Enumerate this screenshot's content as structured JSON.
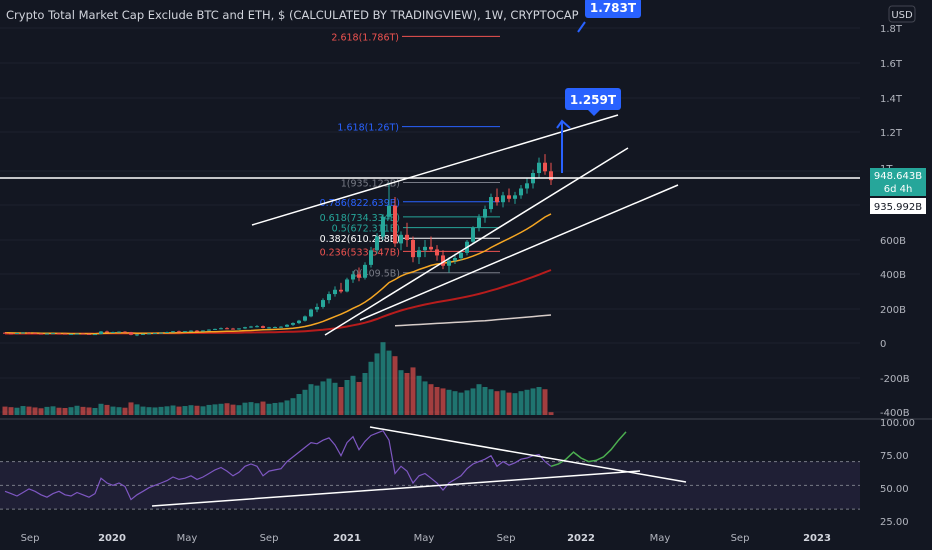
{
  "header": {
    "title": "Crypto Total Market Cap Exclude BTC and ETH, $ (CALCULATED BY TRADINGVIEW), 1W, CRYPTOCAP",
    "currency": "USD"
  },
  "colors": {
    "background": "#131722",
    "axis_text": "#b2b5be",
    "up": "#26a69a",
    "down": "#ef5350",
    "trendline": "#ffffff",
    "target": "#2962ff",
    "ma_fast": "#f5a623",
    "ma_mid": "#b71c1c",
    "ma_slow": "#d7ccc8",
    "rsi": "#7e57c2",
    "projection": "#4caf50"
  },
  "callouts": [
    {
      "label": "1.783T",
      "value": 1783
    },
    {
      "label": "1.259T",
      "value": 1259
    }
  ],
  "price_axis": {
    "tick_labels": [
      "1.8T",
      "1.6T",
      "1.4T",
      "1.2T",
      "1T",
      "600B",
      "400B",
      "200B",
      "0",
      "-200B",
      "-400B"
    ]
  },
  "price_labels": [
    {
      "label": "948.643B",
      "sub": "6d 4h",
      "value": 948.643,
      "color": "#26a69a"
    },
    {
      "label": "935.992B",
      "value": 935.992,
      "color": "#ffffff"
    }
  ],
  "rsi_axis": {
    "tick_labels": [
      "100.00",
      "75.00",
      "50.00",
      "25.00"
    ]
  },
  "time_axis": {
    "tick_labels": [
      "Sep",
      "2020",
      "May",
      "Sep",
      "2021",
      "May",
      "Sep",
      "2022",
      "May",
      "Sep",
      "2023"
    ],
    "bold": [
      "2020",
      "2021",
      "2022",
      "2023"
    ]
  },
  "chart_data": {
    "type": "candlestick",
    "title": "Crypto Total Market Cap Exclude BTC and ETH, $ (CALCULATED BY TRADINGVIEW), 1W, CRYPTOCAP",
    "fib_levels": [
      {
        "label": "2.618(1.786T)",
        "value": 1786,
        "color": "#ef5350"
      },
      {
        "label": "1.618(1.26T)",
        "value": 1260,
        "color": "#2962ff"
      },
      {
        "label": "1(935.122B)",
        "value": 935.122,
        "color": "#787b86"
      },
      {
        "label": "0.786(822.639B)",
        "value": 822.639,
        "color": "#2962ff"
      },
      {
        "label": "0.618(734.334B)",
        "value": 734.334,
        "color": "#26a69a"
      },
      {
        "label": "0.5(672.311B)",
        "value": 672.311,
        "color": "#26a69a"
      },
      {
        "label": "0.382(610.288B)",
        "value": 610.288,
        "color": "#ffffff"
      },
      {
        "label": "0.236(533.547B)",
        "value": 533.547,
        "color": "#ef5350"
      },
      {
        "label": "0(409.5B)",
        "value": 409.5,
        "color": "#787b86"
      }
    ],
    "candles": [
      [
        60,
        62,
        55,
        57
      ],
      [
        57,
        59,
        52,
        54
      ],
      [
        54,
        60,
        52,
        58
      ],
      [
        58,
        63,
        56,
        61
      ],
      [
        61,
        64,
        58,
        59
      ],
      [
        59,
        61,
        55,
        56
      ],
      [
        56,
        58,
        52,
        54
      ],
      [
        54,
        57,
        51,
        55
      ],
      [
        55,
        58,
        53,
        57
      ],
      [
        57,
        59,
        54,
        55
      ],
      [
        55,
        56,
        50,
        52
      ],
      [
        52,
        54,
        49,
        53
      ],
      [
        53,
        56,
        51,
        55
      ],
      [
        55,
        57,
        52,
        53
      ],
      [
        53,
        55,
        50,
        51
      ],
      [
        51,
        53,
        48,
        52
      ],
      [
        52,
        70,
        50,
        67
      ],
      [
        67,
        72,
        60,
        62
      ],
      [
        62,
        66,
        58,
        64
      ],
      [
        64,
        68,
        61,
        66
      ],
      [
        66,
        69,
        62,
        63
      ],
      [
        63,
        65,
        45,
        48
      ],
      [
        48,
        52,
        40,
        50
      ],
      [
        50,
        55,
        47,
        53
      ],
      [
        53,
        58,
        51,
        56
      ],
      [
        56,
        60,
        54,
        58
      ],
      [
        58,
        62,
        56,
        60
      ],
      [
        60,
        66,
        58,
        64
      ],
      [
        64,
        70,
        62,
        68
      ],
      [
        68,
        72,
        64,
        66
      ],
      [
        66,
        70,
        63,
        69
      ],
      [
        69,
        74,
        66,
        72
      ],
      [
        72,
        76,
        68,
        70
      ],
      [
        70,
        74,
        67,
        73
      ],
      [
        73,
        80,
        71,
        78
      ],
      [
        78,
        84,
        75,
        82
      ],
      [
        82,
        90,
        79,
        86
      ],
      [
        86,
        92,
        80,
        84
      ],
      [
        84,
        88,
        78,
        80
      ],
      [
        80,
        86,
        77,
        85
      ],
      [
        85,
        95,
        82,
        92
      ],
      [
        92,
        100,
        88,
        96
      ],
      [
        96,
        104,
        90,
        98
      ],
      [
        98,
        102,
        85,
        88
      ],
      [
        88,
        94,
        84,
        91
      ],
      [
        91,
        96,
        87,
        93
      ],
      [
        93,
        98,
        89,
        95
      ],
      [
        95,
        110,
        92,
        106
      ],
      [
        106,
        120,
        100,
        116
      ],
      [
        116,
        135,
        110,
        130
      ],
      [
        130,
        160,
        125,
        155
      ],
      [
        155,
        200,
        150,
        195
      ],
      [
        195,
        230,
        180,
        210
      ],
      [
        210,
        260,
        200,
        250
      ],
      [
        250,
        300,
        230,
        285
      ],
      [
        285,
        330,
        270,
        310
      ],
      [
        310,
        350,
        290,
        300
      ],
      [
        300,
        380,
        295,
        370
      ],
      [
        370,
        420,
        350,
        400
      ],
      [
        400,
        440,
        360,
        380
      ],
      [
        380,
        470,
        370,
        455
      ],
      [
        455,
        560,
        440,
        540
      ],
      [
        540,
        640,
        520,
        620
      ],
      [
        620,
        750,
        600,
        735
      ],
      [
        735,
        935,
        720,
        800
      ],
      [
        800,
        850,
        560,
        580
      ],
      [
        580,
        650,
        540,
        630
      ],
      [
        630,
        700,
        560,
        600
      ],
      [
        600,
        620,
        470,
        500
      ],
      [
        500,
        560,
        460,
        540
      ],
      [
        540,
        600,
        500,
        560
      ],
      [
        560,
        620,
        530,
        545
      ],
      [
        545,
        570,
        480,
        510
      ],
      [
        510,
        540,
        430,
        450
      ],
      [
        450,
        500,
        410,
        480
      ],
      [
        480,
        520,
        460,
        495
      ],
      [
        495,
        540,
        480,
        525
      ],
      [
        525,
        600,
        510,
        590
      ],
      [
        590,
        680,
        580,
        670
      ],
      [
        670,
        750,
        650,
        730
      ],
      [
        730,
        800,
        700,
        780
      ],
      [
        780,
        870,
        760,
        850
      ],
      [
        850,
        900,
        800,
        820
      ],
      [
        820,
        880,
        790,
        860
      ],
      [
        860,
        900,
        820,
        840
      ],
      [
        840,
        880,
        810,
        860
      ],
      [
        860,
        920,
        840,
        900
      ],
      [
        900,
        960,
        870,
        930
      ],
      [
        930,
        1010,
        900,
        990
      ],
      [
        990,
        1080,
        960,
        1050
      ],
      [
        1050,
        1100,
        980,
        1000
      ],
      [
        1000,
        1050,
        920,
        948.6
      ]
    ],
    "volume": [
      30,
      28,
      26,
      32,
      30,
      27,
      24,
      29,
      31,
      26,
      25,
      28,
      33,
      29,
      27,
      25,
      40,
      36,
      30,
      28,
      26,
      45,
      38,
      30,
      28,
      27,
      29,
      31,
      34,
      30,
      32,
      35,
      33,
      31,
      36,
      38,
      40,
      42,
      37,
      35,
      44,
      46,
      42,
      48,
      40,
      43,
      45,
      52,
      60,
      75,
      90,
      110,
      105,
      120,
      130,
      115,
      100,
      125,
      140,
      118,
      150,
      190,
      220,
      260,
      230,
      210,
      160,
      150,
      170,
      140,
      120,
      110,
      100,
      95,
      90,
      85,
      80,
      88,
      95,
      110,
      100,
      92,
      85,
      88,
      80,
      78,
      85,
      90,
      95,
      100,
      92,
      10
    ],
    "rsi": [
      45,
      43,
      41,
      44,
      47,
      45,
      42,
      40,
      43,
      45,
      42,
      41,
      44,
      42,
      40,
      43,
      56,
      52,
      50,
      52,
      49,
      38,
      42,
      45,
      48,
      50,
      52,
      54,
      57,
      55,
      56,
      58,
      55,
      57,
      60,
      63,
      65,
      62,
      58,
      61,
      66,
      68,
      66,
      58,
      62,
      63,
      64,
      70,
      74,
      78,
      82,
      86,
      85,
      88,
      90,
      84,
      75,
      86,
      91,
      80,
      87,
      92,
      94,
      96,
      88,
      60,
      66,
      62,
      52,
      58,
      60,
      56,
      52,
      46,
      52,
      55,
      58,
      64,
      68,
      70,
      72,
      75,
      66,
      70,
      67,
      69,
      72,
      73,
      75,
      76,
      70,
      66
    ],
    "rsi_projection": [
      66,
      68,
      72,
      78,
      73,
      70,
      71,
      74,
      80,
      88,
      95
    ],
    "ma_fast": [
      60,
      59,
      58,
      58,
      58,
      58,
      57,
      57,
      57,
      56,
      56,
      55,
      55,
      55,
      55,
      54,
      56,
      57,
      58,
      59,
      59,
      58,
      57,
      57,
      57,
      57,
      58,
      58,
      59,
      60,
      61,
      62,
      63,
      64,
      65,
      66,
      67,
      68,
      69,
      70,
      72,
      73,
      75,
      77,
      78,
      79,
      81,
      83,
      86,
      90,
      96,
      104,
      114,
      126,
      140,
      154,
      168,
      184,
      202,
      218,
      238,
      262,
      290,
      320,
      352,
      370,
      390,
      404,
      414,
      428,
      440,
      452,
      460,
      464,
      470,
      476,
      484,
      494,
      506,
      520,
      536,
      556,
      574,
      592,
      608,
      626,
      644,
      664,
      686,
      710,
      734,
      752
    ],
    "ma_mid": [
      55,
      55,
      55,
      55,
      55,
      55,
      55,
      55,
      55,
      55,
      55,
      55,
      55,
      55,
      55,
      55,
      56,
      56,
      56,
      56,
      56,
      56,
      56,
      56,
      56,
      57,
      57,
      57,
      57,
      57,
      58,
      58,
      58,
      58,
      59,
      59,
      59,
      60,
      60,
      60,
      61,
      61,
      62,
      62,
      63,
      63,
      64,
      65,
      66,
      67,
      69,
      71,
      74,
      77,
      81,
      85,
      90,
      96,
      103,
      110,
      118,
      128,
      140,
      153,
      166,
      178,
      189,
      199,
      208,
      216,
      224,
      231,
      238,
      244,
      250,
      256,
      263,
      270,
      278,
      286,
      295,
      305,
      315,
      326,
      337,
      348,
      360,
      372,
      385,
      398,
      412,
      425
    ],
    "ma_slow": [
      null,
      null,
      null,
      null,
      null,
      null,
      null,
      null,
      null,
      null,
      null,
      null,
      null,
      null,
      null,
      null,
      null,
      null,
      null,
      null,
      null,
      null,
      null,
      null,
      null,
      null,
      null,
      null,
      null,
      null,
      null,
      null,
      null,
      null,
      null,
      null,
      null,
      null,
      null,
      null,
      null,
      null,
      null,
      null,
      null,
      null,
      null,
      null,
      null,
      null,
      null,
      null,
      null,
      null,
      null,
      null,
      null,
      null,
      null,
      null,
      null,
      null,
      null,
      null,
      null,
      100,
      102,
      104,
      106,
      108,
      110,
      112,
      114,
      116,
      118,
      120,
      122,
      124,
      126,
      128,
      130,
      133,
      136,
      139,
      142,
      145,
      148,
      151,
      154,
      157,
      160,
      163
    ]
  }
}
